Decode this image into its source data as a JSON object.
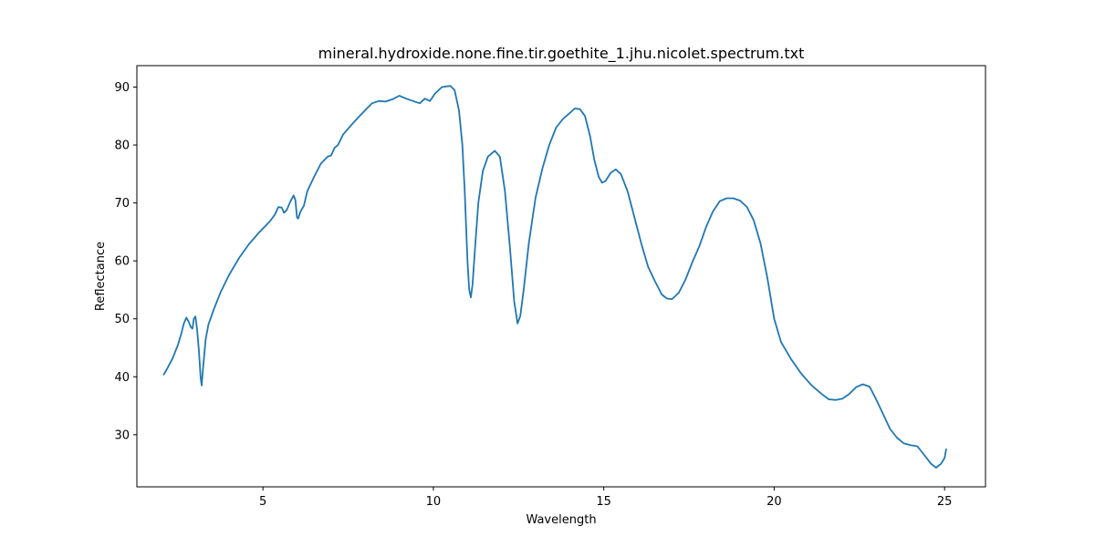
{
  "chart_data": {
    "type": "line",
    "title": "mineral.hydroxide.none.fine.tir.goethite_1.jhu.nicolet.spectrum.txt",
    "xlabel": "Wavelength",
    "ylabel": "Reflectance",
    "xlim": [
      1.3,
      26.2
    ],
    "ylim": [
      21,
      93.7
    ],
    "xticks": [
      5,
      10,
      15,
      20,
      25
    ],
    "yticks": [
      30,
      40,
      50,
      60,
      70,
      80,
      90
    ],
    "grid": false,
    "line_color": "#1f77b4",
    "series": [
      {
        "points": [
          [
            2.08,
            40.3
          ],
          [
            2.2,
            41.5
          ],
          [
            2.35,
            43.2
          ],
          [
            2.5,
            45.4
          ],
          [
            2.6,
            47.4
          ],
          [
            2.68,
            49.2
          ],
          [
            2.75,
            50.2
          ],
          [
            2.82,
            49.5
          ],
          [
            2.88,
            48.6
          ],
          [
            2.93,
            48.3
          ],
          [
            2.97,
            50.0
          ],
          [
            3.02,
            50.4
          ],
          [
            3.07,
            48.0
          ],
          [
            3.12,
            44.5
          ],
          [
            3.17,
            40.0
          ],
          [
            3.2,
            38.5
          ],
          [
            3.25,
            42.0
          ],
          [
            3.32,
            46.5
          ],
          [
            3.4,
            49.0
          ],
          [
            3.55,
            51.5
          ],
          [
            3.75,
            54.5
          ],
          [
            4.0,
            57.5
          ],
          [
            4.3,
            60.5
          ],
          [
            4.6,
            63.0
          ],
          [
            4.9,
            65.0
          ],
          [
            5.2,
            66.8
          ],
          [
            5.35,
            68.0
          ],
          [
            5.45,
            69.3
          ],
          [
            5.55,
            69.2
          ],
          [
            5.62,
            68.3
          ],
          [
            5.7,
            68.8
          ],
          [
            5.8,
            70.2
          ],
          [
            5.9,
            71.3
          ],
          [
            5.95,
            70.5
          ],
          [
            6.0,
            67.5
          ],
          [
            6.03,
            67.3
          ],
          [
            6.1,
            68.5
          ],
          [
            6.2,
            69.5
          ],
          [
            6.3,
            72.0
          ],
          [
            6.5,
            74.5
          ],
          [
            6.7,
            76.8
          ],
          [
            6.9,
            78.0
          ],
          [
            7.0,
            78.2
          ],
          [
            7.1,
            79.5
          ],
          [
            7.2,
            80.0
          ],
          [
            7.35,
            81.8
          ],
          [
            7.6,
            83.5
          ],
          [
            7.8,
            84.8
          ],
          [
            8.0,
            86.0
          ],
          [
            8.2,
            87.2
          ],
          [
            8.4,
            87.6
          ],
          [
            8.6,
            87.5
          ],
          [
            8.8,
            87.9
          ],
          [
            9.0,
            88.5
          ],
          [
            9.2,
            88.0
          ],
          [
            9.4,
            87.6
          ],
          [
            9.6,
            87.2
          ],
          [
            9.75,
            88.0
          ],
          [
            9.9,
            87.6
          ],
          [
            10.05,
            88.9
          ],
          [
            10.25,
            90.0
          ],
          [
            10.5,
            90.2
          ],
          [
            10.62,
            89.5
          ],
          [
            10.75,
            86.0
          ],
          [
            10.85,
            80.0
          ],
          [
            10.92,
            72.0
          ],
          [
            11.0,
            60.0
          ],
          [
            11.05,
            55.0
          ],
          [
            11.1,
            53.7
          ],
          [
            11.15,
            56.0
          ],
          [
            11.22,
            62.0
          ],
          [
            11.32,
            70.0
          ],
          [
            11.45,
            75.5
          ],
          [
            11.6,
            78.0
          ],
          [
            11.8,
            79.0
          ],
          [
            11.95,
            78.0
          ],
          [
            12.1,
            72.0
          ],
          [
            12.25,
            62.0
          ],
          [
            12.37,
            53.0
          ],
          [
            12.47,
            49.2
          ],
          [
            12.55,
            50.5
          ],
          [
            12.65,
            55.0
          ],
          [
            12.8,
            63.0
          ],
          [
            13.0,
            71.0
          ],
          [
            13.2,
            76.0
          ],
          [
            13.4,
            80.0
          ],
          [
            13.6,
            83.0
          ],
          [
            13.8,
            84.5
          ],
          [
            14.0,
            85.5
          ],
          [
            14.15,
            86.3
          ],
          [
            14.3,
            86.2
          ],
          [
            14.45,
            85.0
          ],
          [
            14.6,
            81.5
          ],
          [
            14.72,
            77.5
          ],
          [
            14.85,
            74.5
          ],
          [
            14.95,
            73.5
          ],
          [
            15.05,
            73.8
          ],
          [
            15.2,
            75.2
          ],
          [
            15.35,
            75.8
          ],
          [
            15.5,
            75.0
          ],
          [
            15.7,
            72.0
          ],
          [
            15.9,
            67.5
          ],
          [
            16.1,
            63.0
          ],
          [
            16.3,
            59.0
          ],
          [
            16.5,
            56.5
          ],
          [
            16.7,
            54.2
          ],
          [
            16.85,
            53.5
          ],
          [
            17.0,
            53.4
          ],
          [
            17.2,
            54.5
          ],
          [
            17.4,
            56.8
          ],
          [
            17.6,
            59.8
          ],
          [
            17.8,
            62.5
          ],
          [
            18.0,
            65.8
          ],
          [
            18.2,
            68.5
          ],
          [
            18.4,
            70.3
          ],
          [
            18.6,
            70.8
          ],
          [
            18.8,
            70.8
          ],
          [
            19.0,
            70.4
          ],
          [
            19.2,
            69.3
          ],
          [
            19.4,
            67.0
          ],
          [
            19.6,
            63.0
          ],
          [
            19.8,
            57.0
          ],
          [
            20.0,
            50.0
          ],
          [
            20.2,
            46.0
          ],
          [
            20.5,
            43.0
          ],
          [
            20.8,
            40.5
          ],
          [
            21.1,
            38.5
          ],
          [
            21.4,
            37.0
          ],
          [
            21.6,
            36.1
          ],
          [
            21.8,
            36.0
          ],
          [
            22.0,
            36.2
          ],
          [
            22.2,
            37.0
          ],
          [
            22.4,
            38.2
          ],
          [
            22.6,
            38.7
          ],
          [
            22.8,
            38.3
          ],
          [
            23.0,
            36.0
          ],
          [
            23.2,
            33.5
          ],
          [
            23.4,
            31.0
          ],
          [
            23.6,
            29.5
          ],
          [
            23.8,
            28.5
          ],
          [
            24.0,
            28.2
          ],
          [
            24.2,
            28.0
          ],
          [
            24.4,
            26.5
          ],
          [
            24.6,
            25.0
          ],
          [
            24.75,
            24.3
          ],
          [
            24.9,
            25.0
          ],
          [
            25.0,
            26.0
          ],
          [
            25.05,
            27.6
          ]
        ]
      }
    ]
  }
}
